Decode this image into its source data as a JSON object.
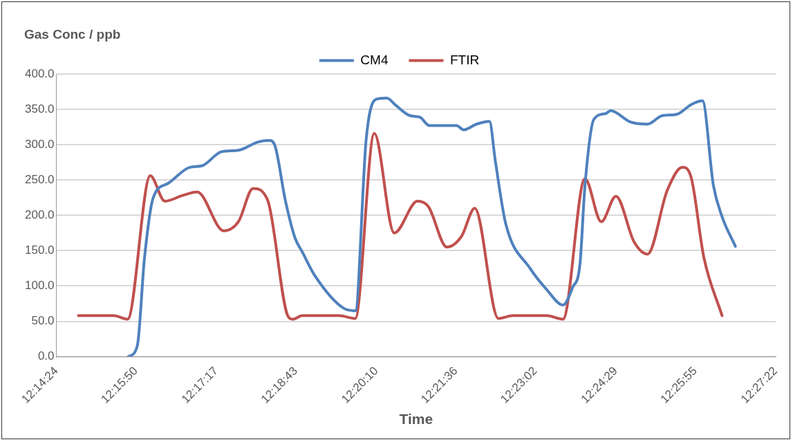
{
  "chart_data": {
    "type": "line",
    "ylabel": "Gas Conc / ppb",
    "xlabel": "Time",
    "xlim": [
      12.24,
      12.45611
    ],
    "ylim": [
      0,
      400
    ],
    "xticks": [
      {
        "value": 12.24,
        "label": "12:14:24"
      },
      {
        "value": 12.26389,
        "label": "12:15:50"
      },
      {
        "value": 12.28806,
        "label": "12:17:17"
      },
      {
        "value": 12.31194,
        "label": "12:18:43"
      },
      {
        "value": 12.33611,
        "label": "12:20:10"
      },
      {
        "value": 12.36,
        "label": "12:21:36"
      },
      {
        "value": 12.38389,
        "label": "12:23:02"
      },
      {
        "value": 12.40806,
        "label": "12:24:29"
      },
      {
        "value": 12.43194,
        "label": "12:25:55"
      },
      {
        "value": 12.45611,
        "label": "12:27:22"
      }
    ],
    "yticks": [
      {
        "value": 0,
        "label": "0.0"
      },
      {
        "value": 50,
        "label": "50.0"
      },
      {
        "value": 100,
        "label": "100.0"
      },
      {
        "value": 150,
        "label": "150.0"
      },
      {
        "value": 200,
        "label": "200.0"
      },
      {
        "value": 250,
        "label": "250.0"
      },
      {
        "value": 300,
        "label": "300.0"
      },
      {
        "value": 350,
        "label": "350.0"
      },
      {
        "value": 400,
        "label": "400.0"
      }
    ],
    "grid": "y",
    "legend": "top",
    "marker": "none",
    "line_style": "solid",
    "series": [
      {
        "name": "CM4",
        "color": "#4f81bd",
        "x": [
          12.2616,
          12.2643,
          12.2665,
          12.2691,
          12.2735,
          12.2801,
          12.2837,
          12.2896,
          12.2947,
          12.3007,
          12.304,
          12.3057,
          12.3088,
          12.3117,
          12.3139,
          12.3176,
          12.3265,
          12.3298,
          12.3331,
          12.3359,
          12.3393,
          12.3419,
          12.3463,
          12.3492,
          12.352,
          12.3602,
          12.3624,
          12.3662,
          12.3701,
          12.3719,
          12.375,
          12.3823,
          12.3873,
          12.3922,
          12.3951,
          12.3973,
          12.3988,
          12.4015,
          12.405,
          12.4065,
          12.4125,
          12.4176,
          12.422,
          12.4264,
          12.4308,
          12.4341,
          12.4374,
          12.44,
          12.444
        ],
        "values": [
          0,
          15,
          141,
          225,
          245,
          268,
          270,
          290,
          292,
          304,
          306,
          298,
          221,
          168,
          148,
          115,
          68,
          65,
          309,
          364,
          366,
          356,
          341,
          339,
          327,
          327,
          321,
          329,
          333,
          276,
          188,
          125,
          95,
          73,
          98,
          131,
          242,
          336,
          344,
          348,
          332,
          329,
          341,
          343,
          357,
          362,
          242,
          198,
          156
        ]
      },
      {
        "name": "FTIR",
        "color": "#c0504d",
        "x": [
          12.2466,
          12.2572,
          12.2614,
          12.2682,
          12.2726,
          12.2779,
          12.2823,
          12.2903,
          12.2947,
          12.2991,
          12.3035,
          12.3095,
          12.311,
          12.3139,
          12.3249,
          12.3298,
          12.3355,
          12.3415,
          12.3485,
          12.3518,
          12.3573,
          12.3617,
          12.3657,
          12.3728,
          12.3772,
          12.3873,
          12.3922,
          12.3988,
          12.4037,
          12.4081,
          12.4136,
          12.4176,
          12.4235,
          12.4281,
          12.4308,
          12.4345,
          12.44
        ],
        "values": [
          58,
          58,
          53,
          256,
          220,
          228,
          233,
          178,
          191,
          238,
          221,
          58,
          53,
          58,
          58,
          54,
          316,
          175,
          220,
          212,
          155,
          170,
          210,
          54,
          58,
          58,
          53,
          252,
          191,
          227,
          162,
          145,
          235,
          268,
          252,
          141,
          58
        ]
      }
    ]
  }
}
